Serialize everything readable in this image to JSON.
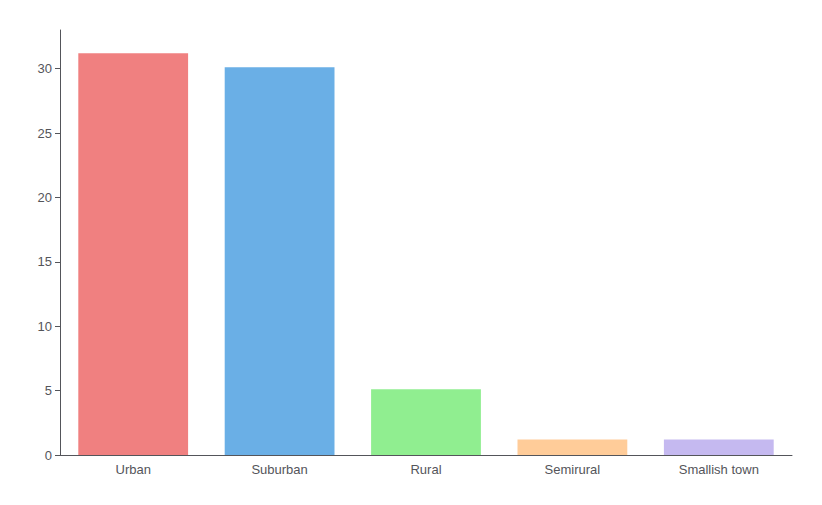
{
  "chart_data": {
    "type": "bar",
    "categories": [
      "Urban",
      "Suburban",
      "Rural",
      "Semirural",
      "Smallish town"
    ],
    "values": [
      31.2,
      30.1,
      5.1,
      1.2,
      1.2
    ],
    "colors": [
      "#f08080",
      "#6aafe6",
      "#90ee90",
      "#ffcc99",
      "#c5b9f0"
    ],
    "ylim": [
      0,
      33
    ],
    "yticks": [
      0,
      5,
      10,
      15,
      20,
      25,
      30
    ],
    "grid": false
  }
}
